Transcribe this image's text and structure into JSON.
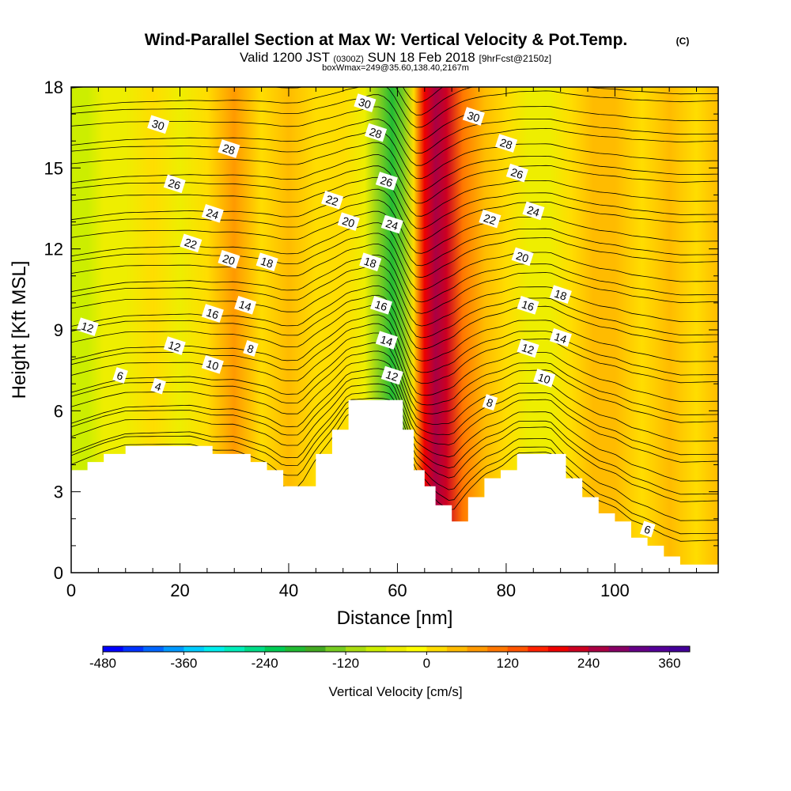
{
  "chart_data": {
    "type": "heatmap",
    "title": "Wind-Parallel Section at Max W: Vertical Velocity & Pot.Temp.",
    "title_mark": "(C)",
    "subtitle_main": "Valid 1200 JST",
    "subtitle_utc": "(0300Z)",
    "subtitle_date": "SUN 18 Feb 2018",
    "subtitle_fcst": "[9hrFcst@2150z]",
    "subtitle_box": "boxWmax=249@35.60,138.40,2167m",
    "xlabel": "Distance [nm]",
    "ylabel": "Height [Kft MSL]",
    "xlim": [
      0,
      119
    ],
    "ylim": [
      0,
      18
    ],
    "x_ticks": [
      "0",
      "20",
      "40",
      "60",
      "80",
      "100"
    ],
    "x_tick_values": [
      0,
      20,
      40,
      60,
      80,
      100
    ],
    "y_ticks": [
      "0",
      "3",
      "6",
      "9",
      "12",
      "15",
      "18"
    ],
    "y_tick_values": [
      0,
      3,
      6,
      9,
      12,
      15,
      18
    ],
    "colorbar": {
      "title": "Vertical Velocity [cm/s]",
      "labels": [
        "-480",
        "-360",
        "-240",
        "-120",
        "0",
        "120",
        "240",
        "360"
      ],
      "label_values": [
        -480,
        -360,
        -240,
        -120,
        0,
        120,
        240,
        360
      ],
      "min": -480,
      "max": 390,
      "step": 30,
      "colors": [
        "#0000ff",
        "#0033ff",
        "#0066ff",
        "#0099ff",
        "#00ccff",
        "#00eeee",
        "#00eebb",
        "#00dd88",
        "#00cc55",
        "#22bb33",
        "#44aa22",
        "#77cc22",
        "#aadd11",
        "#ccee00",
        "#eeee00",
        "#ffff00",
        "#ffdd00",
        "#ffbb00",
        "#ff9900",
        "#ff7700",
        "#ff5500",
        "#ff2200",
        "#ee0000",
        "#cc0022",
        "#aa0044",
        "#880066",
        "#660088",
        "#550099",
        "#440099"
      ]
    },
    "velocity_columns": {
      "x": [
        0,
        3,
        6,
        10,
        15,
        20,
        25,
        30,
        35,
        40,
        45,
        50,
        54,
        57,
        59,
        61,
        63,
        65,
        67,
        69,
        72,
        76,
        80,
        84,
        88,
        92,
        96,
        100,
        105,
        110,
        115,
        119
      ],
      "w": [
        -80,
        -90,
        -40,
        -60,
        0,
        -40,
        0,
        60,
        20,
        30,
        0,
        20,
        -40,
        -150,
        -210,
        -130,
        20,
        200,
        260,
        220,
        90,
        30,
        10,
        -40,
        -60,
        0,
        30,
        40,
        20,
        30,
        0,
        30
      ]
    },
    "terrain": {
      "x": [
        0,
        3,
        6,
        10,
        14,
        18,
        22,
        26,
        30,
        33,
        36,
        39,
        42,
        45,
        48,
        51,
        54,
        57,
        59,
        61,
        63,
        65,
        67,
        70,
        73,
        76,
        79,
        82,
        85,
        88,
        91,
        94,
        97,
        100,
        103,
        106,
        109,
        112,
        115,
        119
      ],
      "height_kft": [
        3.8,
        4.1,
        4.4,
        4.7,
        4.7,
        4.7,
        4.7,
        4.4,
        4.4,
        4.1,
        3.8,
        3.2,
        3.2,
        4.4,
        5.3,
        6.4,
        6.4,
        6.4,
        6.4,
        5.3,
        3.8,
        3.2,
        2.5,
        1.9,
        2.8,
        3.5,
        3.8,
        4.4,
        4.4,
        4.4,
        3.5,
        2.8,
        2.2,
        1.9,
        1.3,
        1.0,
        0.6,
        0.3,
        0.3,
        0.3
      ]
    },
    "isentropes": {
      "levels": [
        4,
        6,
        8,
        10,
        12,
        14,
        16,
        18,
        20,
        22,
        24,
        26,
        28,
        30
      ],
      "labels": [
        {
          "text": "30",
          "x": 16,
          "y": 16.6
        },
        {
          "text": "28",
          "x": 29,
          "y": 15.7
        },
        {
          "text": "26",
          "x": 19,
          "y": 14.4
        },
        {
          "text": "24",
          "x": 26,
          "y": 13.3
        },
        {
          "text": "22",
          "x": 22,
          "y": 12.2
        },
        {
          "text": "20",
          "x": 29,
          "y": 11.6
        },
        {
          "text": "18",
          "x": 36,
          "y": 11.5
        },
        {
          "text": "16",
          "x": 26,
          "y": 9.6
        },
        {
          "text": "14",
          "x": 32,
          "y": 9.9
        },
        {
          "text": "12",
          "x": 3,
          "y": 9.1
        },
        {
          "text": "12",
          "x": 19,
          "y": 8.4
        },
        {
          "text": "10",
          "x": 26,
          "y": 7.7
        },
        {
          "text": "8",
          "x": 33,
          "y": 8.3
        },
        {
          "text": "6",
          "x": 9,
          "y": 7.3
        },
        {
          "text": "4",
          "x": 16,
          "y": 6.9
        },
        {
          "text": "30",
          "x": 54,
          "y": 17.4
        },
        {
          "text": "28",
          "x": 56,
          "y": 16.3
        },
        {
          "text": "26",
          "x": 58,
          "y": 14.5
        },
        {
          "text": "24",
          "x": 59,
          "y": 12.9
        },
        {
          "text": "22",
          "x": 48,
          "y": 13.8
        },
        {
          "text": "20",
          "x": 51,
          "y": 13.0
        },
        {
          "text": "18",
          "x": 55,
          "y": 11.5
        },
        {
          "text": "16",
          "x": 57,
          "y": 9.9
        },
        {
          "text": "14",
          "x": 58,
          "y": 8.6
        },
        {
          "text": "12",
          "x": 59,
          "y": 7.3
        },
        {
          "text": "30",
          "x": 74,
          "y": 16.9
        },
        {
          "text": "28",
          "x": 80,
          "y": 15.9
        },
        {
          "text": "26",
          "x": 82,
          "y": 14.8
        },
        {
          "text": "24",
          "x": 85,
          "y": 13.4
        },
        {
          "text": "22",
          "x": 77,
          "y": 13.1
        },
        {
          "text": "20",
          "x": 83,
          "y": 11.7
        },
        {
          "text": "18",
          "x": 90,
          "y": 10.3
        },
        {
          "text": "16",
          "x": 84,
          "y": 9.9
        },
        {
          "text": "14",
          "x": 90,
          "y": 8.7
        },
        {
          "text": "12",
          "x": 84,
          "y": 8.3
        },
        {
          "text": "10",
          "x": 87,
          "y": 7.2
        },
        {
          "text": "8",
          "x": 77,
          "y": 6.3
        },
        {
          "text": "6",
          "x": 106,
          "y": 1.6
        }
      ]
    }
  }
}
